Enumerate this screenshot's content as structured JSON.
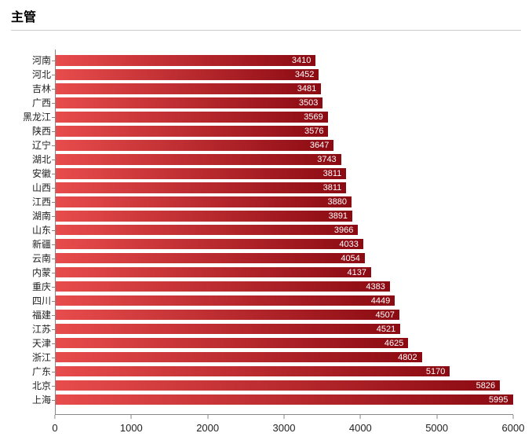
{
  "chart": {
    "type": "bar-horizontal",
    "title": "主管",
    "title_fontsize": 16,
    "background_color": "#ffffff",
    "border_color": "#cccccc",
    "plot": {
      "x_min": 0,
      "x_max": 6000,
      "x_tick_step": 1000,
      "x_ticks": [
        0,
        1000,
        2000,
        3000,
        4000,
        5000,
        6000
      ],
      "axis_line_color": "#888888",
      "bar_gradient_start": "#e84c4c",
      "bar_gradient_end": "#8b0a12",
      "value_label_color": "#ffffff",
      "value_label_fontsize": 11,
      "y_label_fontsize": 12,
      "x_label_fontsize": 13,
      "bar_gap_ratio": 0.25
    },
    "series": [
      {
        "label": "河南",
        "value": 3410
      },
      {
        "label": "河北",
        "value": 3452
      },
      {
        "label": "吉林",
        "value": 3481
      },
      {
        "label": "广西",
        "value": 3503
      },
      {
        "label": "黑龙江",
        "value": 3569
      },
      {
        "label": "陕西",
        "value": 3576
      },
      {
        "label": "辽宁",
        "value": 3647
      },
      {
        "label": "湖北",
        "value": 3743
      },
      {
        "label": "安徽",
        "value": 3811
      },
      {
        "label": "山西",
        "value": 3811
      },
      {
        "label": "江西",
        "value": 3880
      },
      {
        "label": "湖南",
        "value": 3891
      },
      {
        "label": "山东",
        "value": 3966
      },
      {
        "label": "新疆",
        "value": 4033
      },
      {
        "label": "云南",
        "value": 4054
      },
      {
        "label": "内蒙",
        "value": 4137
      },
      {
        "label": "重庆",
        "value": 4383
      },
      {
        "label": "四川",
        "value": 4449
      },
      {
        "label": "福建",
        "value": 4507
      },
      {
        "label": "江苏",
        "value": 4521
      },
      {
        "label": "天津",
        "value": 4625
      },
      {
        "label": "浙江",
        "value": 4802
      },
      {
        "label": "广东",
        "value": 5170
      },
      {
        "label": "北京",
        "value": 5826
      },
      {
        "label": "上海",
        "value": 5995
      }
    ]
  }
}
